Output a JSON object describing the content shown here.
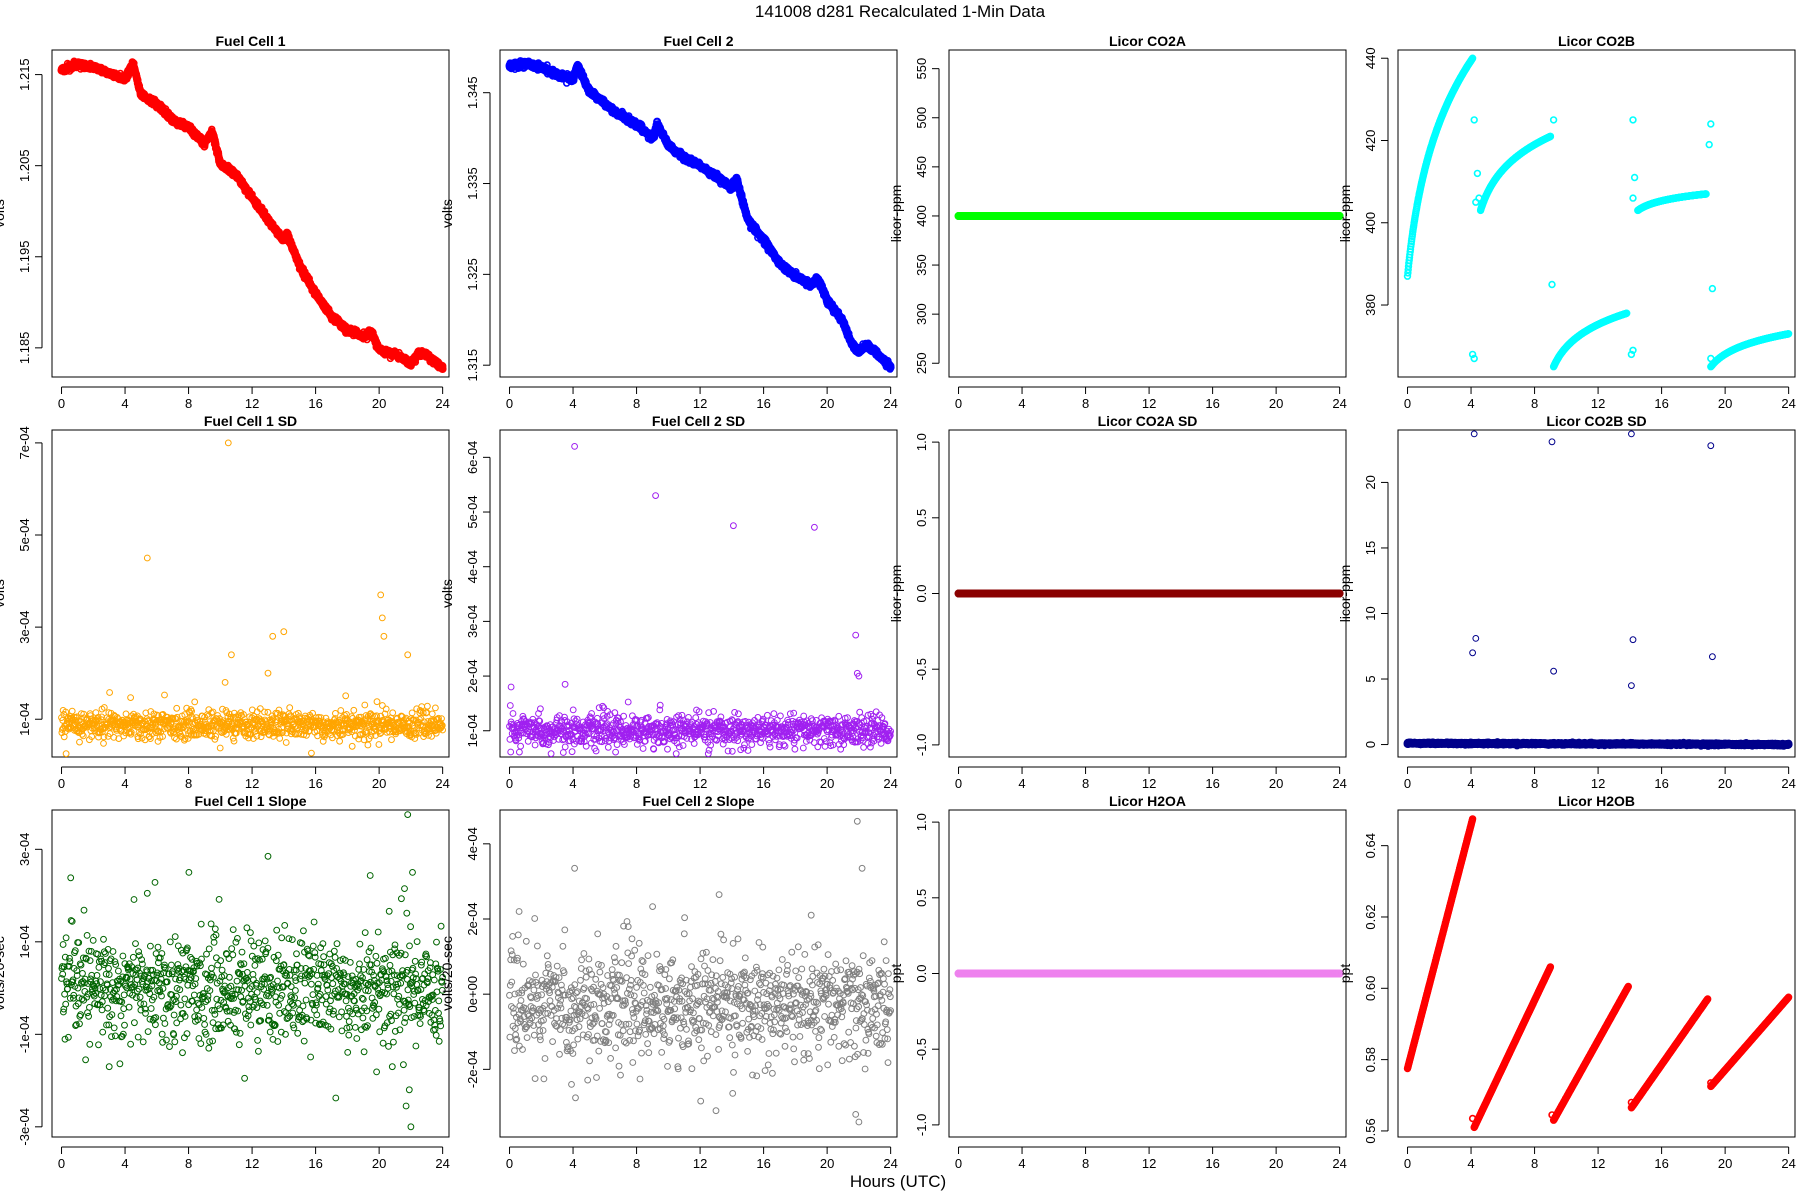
{
  "figure": {
    "title": "141008   d281   Recalculated 1-Min Data",
    "xlabel": "Hours (UTC)"
  },
  "chart_data": [
    {
      "type": "scatter",
      "title": "Fuel Cell 1",
      "ylabel": "volts",
      "color": "#ff0000",
      "xlim": [
        -0.6,
        24.4
      ],
      "ylim": [
        1.1818,
        1.2177
      ],
      "xticks": [
        0,
        4,
        8,
        12,
        16,
        20,
        24
      ],
      "yticks": [
        1.185,
        1.195,
        1.205,
        1.215
      ],
      "ytick_labels": [
        "1.185",
        "1.195",
        "1.205",
        "1.215"
      ],
      "x": [
        0,
        1,
        2,
        3,
        4,
        4.5,
        5,
        6,
        7,
        8,
        9,
        9.5,
        10,
        11,
        12,
        13,
        14,
        14.2,
        15,
        16,
        17,
        18,
        19,
        19.5,
        20,
        21,
        21.5,
        22,
        22.5,
        23,
        24
      ],
      "y": [
        1.2155,
        1.2162,
        1.2158,
        1.2151,
        1.2145,
        1.2162,
        1.2128,
        1.2118,
        1.21,
        1.2092,
        1.2075,
        1.2087,
        1.2052,
        1.204,
        1.2015,
        1.199,
        1.1968,
        1.1975,
        1.194,
        1.191,
        1.1885,
        1.187,
        1.1862,
        1.1868,
        1.1848,
        1.1843,
        1.1838,
        1.1832,
        1.1845,
        1.1842,
        1.1828
      ],
      "fill": "solid",
      "min_jitter": 0.00012
    },
    {
      "type": "scatter",
      "title": "Fuel Cell 2",
      "ylabel": "volts",
      "color": "#0000ff",
      "xlim": [
        -0.6,
        24.4
      ],
      "ylim": [
        1.3137,
        1.3497
      ],
      "xticks": [
        0,
        4,
        8,
        12,
        16,
        20,
        24
      ],
      "yticks": [
        1.315,
        1.325,
        1.335,
        1.345
      ],
      "ytick_labels": [
        "1.315",
        "1.325",
        "1.335",
        "1.345"
      ],
      "x": [
        0,
        1,
        2,
        3,
        4,
        4.3,
        5,
        6,
        7,
        8,
        9,
        9.3,
        10,
        11,
        12,
        13,
        14,
        14.3,
        15,
        16,
        17,
        18,
        19,
        19.4,
        20,
        21,
        21.5,
        22,
        22.5,
        23,
        24
      ],
      "y": [
        1.348,
        1.3482,
        1.3478,
        1.347,
        1.3465,
        1.348,
        1.3452,
        1.3438,
        1.3425,
        1.3415,
        1.34,
        1.3415,
        1.3392,
        1.3378,
        1.337,
        1.3358,
        1.3345,
        1.3355,
        1.331,
        1.3288,
        1.3262,
        1.3248,
        1.3238,
        1.3246,
        1.3222,
        1.3198,
        1.3175,
        1.3165,
        1.3172,
        1.3165,
        1.3148
      ],
      "fill": "solid",
      "min_jitter": 0.00012
    },
    {
      "type": "scatter",
      "title": "Licor CO2A",
      "ylabel": "licor-ppm",
      "color": "#00ff00",
      "xlim": [
        -0.6,
        24.4
      ],
      "ylim": [
        236,
        569
      ],
      "xticks": [
        0,
        4,
        8,
        12,
        16,
        20,
        24
      ],
      "yticks": [
        250,
        300,
        350,
        400,
        450,
        500,
        550
      ],
      "ytick_labels": [
        "250",
        "300",
        "350",
        "400",
        "450",
        "500",
        "550"
      ],
      "x": [
        0,
        24
      ],
      "y": [
        400,
        400
      ],
      "fill": "solid",
      "min_jitter": 0
    },
    {
      "type": "scatter",
      "title": "Licor CO2B",
      "ylabel": "licor-ppm",
      "color": "#00ffff",
      "xlim": [
        -0.6,
        24.4
      ],
      "ylim": [
        362.5,
        442
      ],
      "xticks": [
        0,
        4,
        8,
        12,
        16,
        20,
        24
      ],
      "yticks": [
        380,
        400,
        420,
        440
      ],
      "ytick_labels": [
        "380",
        "400",
        "420",
        "440"
      ],
      "segments": [
        {
          "x0": 0,
          "x1": 4.1,
          "y0": 387,
          "y1": 440,
          "curve": "log"
        },
        {
          "x0": 4.6,
          "x1": 9.0,
          "y0": 403,
          "y1": 421,
          "curve": "log"
        },
        {
          "x0": 9.2,
          "x1": 13.8,
          "y0": 365,
          "y1": 378,
          "curve": "log"
        },
        {
          "x0": 14.5,
          "x1": 18.8,
          "y0": 403,
          "y1": 407,
          "curve": "log"
        },
        {
          "x0": 19.1,
          "x1": 24,
          "y0": 365,
          "y1": 373,
          "curve": "log"
        }
      ],
      "outliers": {
        "x": [
          4.2,
          4.3,
          4.1,
          4.2,
          4.4,
          4.5,
          9.2,
          9.1,
          9.0,
          14.2,
          14.1,
          14.2,
          14.3,
          14.2,
          19.1,
          19.2,
          19.0,
          19.1
        ],
        "y": [
          425,
          405,
          368,
          367,
          412,
          406,
          425,
          385,
          421,
          425,
          368,
          369,
          411,
          406,
          424,
          384,
          419,
          367
        ]
      },
      "fill": "open"
    },
    {
      "type": "scatter",
      "title": "Fuel Cell 1 SD",
      "ylabel": "volts",
      "color": "#ffa500",
      "xlim": [
        -0.6,
        24.4
      ],
      "ylim": [
        1.8e-05,
        0.000728
      ],
      "xticks": [
        0,
        4,
        8,
        12,
        16,
        20,
        24
      ],
      "yticks": [
        0.0001,
        0.0003,
        0.0005,
        0.0007
      ],
      "ytick_labels": [
        "1e-04",
        "3e-04",
        "5e-04",
        "7e-04"
      ],
      "baseline": 8.8e-05,
      "noise": 1.5e-05,
      "spikes": {
        "x": [
          10.5,
          10.7,
          5.4,
          13.3,
          14.0,
          20.1,
          20.2,
          20.3,
          21.8,
          13.0,
          10.3
        ],
        "y": [
          0.0007,
          0.00024,
          0.00045,
          0.00028,
          0.00029,
          0.00037,
          0.00032,
          0.00028,
          0.00024,
          0.0002,
          0.00018
        ]
      },
      "fill": "open"
    },
    {
      "type": "scatter",
      "title": "Fuel Cell 2 SD",
      "ylabel": "volts",
      "color": "#a020f0",
      "xlim": [
        -0.6,
        24.4
      ],
      "ylim": [
        5.2e-05,
        0.00065
      ],
      "xticks": [
        0,
        4,
        8,
        12,
        16,
        20,
        24
      ],
      "yticks": [
        0.0001,
        0.0002,
        0.0003,
        0.0004,
        0.0005,
        0.0006
      ],
      "ytick_labels": [
        "1e-04",
        "2e-04",
        "3e-04",
        "4e-04",
        "5e-04",
        "6e-04"
      ],
      "baseline": 0.0001,
      "noise": 1.4e-05,
      "spikes": {
        "x": [
          4.1,
          9.2,
          14.1,
          19.2,
          21.8,
          21.9,
          22.0,
          0.1,
          3.5
        ],
        "y": [
          0.00062,
          0.00053,
          0.000475,
          0.000472,
          0.000275,
          0.000205,
          0.0002,
          0.00018,
          0.000185
        ]
      },
      "fill": "open"
    },
    {
      "type": "scatter",
      "title": "Licor CO2A SD",
      "ylabel": "licor-ppm",
      "color": "#8b0000",
      "xlim": [
        -0.6,
        24.4
      ],
      "ylim": [
        -1.08,
        1.08
      ],
      "xticks": [
        0,
        4,
        8,
        12,
        16,
        20,
        24
      ],
      "yticks": [
        -1.0,
        -0.5,
        0.0,
        0.5,
        1.0
      ],
      "ytick_labels": [
        "-1.0",
        "-0.5",
        "0.0",
        "0.5",
        "1.0"
      ],
      "x": [
        0,
        24
      ],
      "y": [
        0,
        0
      ],
      "fill": "solid",
      "min_jitter": 0
    },
    {
      "type": "scatter",
      "title": "Licor CO2B SD",
      "ylabel": "licor-ppm",
      "color": "#00008b",
      "xlim": [
        -0.6,
        24.4
      ],
      "ylim": [
        -0.95,
        24.0
      ],
      "xticks": [
        0,
        4,
        8,
        12,
        16,
        20,
        24
      ],
      "yticks": [
        0,
        5,
        10,
        15,
        20
      ],
      "ytick_labels": [
        "0",
        "5",
        "10",
        "15",
        "20"
      ],
      "x": [
        0,
        24
      ],
      "y": [
        0.1,
        0.0
      ],
      "fill": "solid",
      "min_jitter": 0.03,
      "spikes": {
        "x": [
          4.2,
          4.1,
          4.3,
          9.1,
          9.2,
          14.1,
          14.2,
          14.1,
          19.1,
          19.2
        ],
        "y": [
          23.7,
          7.0,
          8.1,
          23.1,
          5.6,
          23.7,
          8.0,
          4.5,
          22.8,
          6.7
        ]
      }
    },
    {
      "type": "scatter",
      "title": "Fuel Cell 1 Slope",
      "ylabel": "volts/20-sec",
      "color": "#006400",
      "xlim": [
        -0.6,
        24.4
      ],
      "ylim": [
        -0.000322,
        0.000385
      ],
      "xticks": [
        0,
        4,
        8,
        12,
        16,
        20,
        24
      ],
      "yticks": [
        -0.0003,
        -0.0001,
        0.0001,
        0.0003
      ],
      "ytick_labels": [
        "-3e-04",
        "-1e-04",
        "1e-04",
        "3e-04"
      ],
      "baseline": 0.0,
      "noise": 5.8e-05,
      "spikes": {
        "x": [
          21.8,
          13.0,
          5.4,
          22.1,
          21.7,
          22.0,
          21.9,
          21.6,
          3.0
        ],
        "y": [
          0.000375,
          0.000285,
          0.000205,
          0.00025,
          -0.000255,
          -0.0003,
          -0.00022,
          0.000215,
          -0.00017
        ]
      },
      "fill": "open"
    },
    {
      "type": "scatter",
      "title": "Fuel Cell 2 Slope",
      "ylabel": "volts/20-sec",
      "color": "#808080",
      "xlim": [
        -0.6,
        24.4
      ],
      "ylim": [
        -0.00038,
        0.00049
      ],
      "xticks": [
        0,
        4,
        8,
        12,
        16,
        20,
        24
      ],
      "yticks": [
        -0.0002,
        0.0,
        0.0002,
        0.0004
      ],
      "ytick_labels": [
        "-2e-04",
        "0e+00",
        "2e-04",
        "4e-04"
      ],
      "baseline": -3e-05,
      "noise": 7e-05,
      "spikes": {
        "x": [
          21.9,
          4.1,
          22.2,
          13.2,
          19.0,
          0.6,
          22.0,
          21.8,
          13.0,
          3.9
        ],
        "y": [
          0.00046,
          0.000335,
          0.000335,
          0.000265,
          0.00021,
          0.00022,
          -0.00034,
          -0.00032,
          -0.00031,
          -0.00024
        ]
      },
      "fill": "open"
    },
    {
      "type": "scatter",
      "title": "Licor H2OA",
      "ylabel": "ppt",
      "color": "#ee82ee",
      "xlim": [
        -0.6,
        24.4
      ],
      "ylim": [
        -1.08,
        1.08
      ],
      "xticks": [
        0,
        4,
        8,
        12,
        16,
        20,
        24
      ],
      "yticks": [
        -1.0,
        -0.5,
        0.0,
        0.5,
        1.0
      ],
      "ytick_labels": [
        "-1.0",
        "-0.5",
        "0.0",
        "0.5",
        "1.0"
      ],
      "x": [
        0,
        24
      ],
      "y": [
        0,
        0
      ],
      "fill": "solid",
      "min_jitter": 0
    },
    {
      "type": "scatter",
      "title": "Licor H2OB",
      "ylabel": "ppt",
      "color": "#ff0000",
      "xlim": [
        -0.6,
        24.4
      ],
      "ylim": [
        0.5583,
        0.65
      ],
      "xticks": [
        0,
        4,
        8,
        12,
        16,
        20,
        24
      ],
      "yticks": [
        0.56,
        0.58,
        0.6,
        0.62,
        0.64
      ],
      "ytick_labels": [
        "0.56",
        "0.58",
        "0.60",
        "0.62",
        "0.64"
      ],
      "segments": [
        {
          "x0": 0,
          "x1": 4.1,
          "y0": 0.5775,
          "y1": 0.6475,
          "curve": "lin"
        },
        {
          "x0": 4.2,
          "x1": 9.0,
          "y0": 0.561,
          "y1": 0.606,
          "curve": "lin"
        },
        {
          "x0": 9.2,
          "x1": 13.9,
          "y0": 0.563,
          "y1": 0.6005,
          "curve": "lin"
        },
        {
          "x0": 14.1,
          "x1": 18.9,
          "y0": 0.5665,
          "y1": 0.597,
          "curve": "lin"
        },
        {
          "x0": 19.1,
          "x1": 24,
          "y0": 0.5725,
          "y1": 0.5975,
          "curve": "lin"
        }
      ],
      "outliers": {
        "x": [
          4.1,
          9.1,
          14.1,
          19.1
        ],
        "y": [
          0.5635,
          0.5645,
          0.568,
          0.5735
        ]
      },
      "fill": "open"
    }
  ]
}
